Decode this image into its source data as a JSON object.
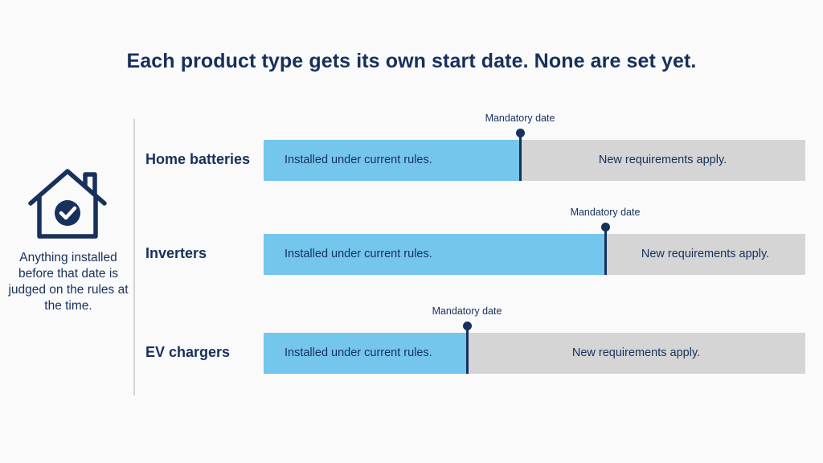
{
  "title": "Each product type gets its own start date. None are set yet.",
  "side_note": "Anything installed before that date is judged on the rules at the time.",
  "icons": {
    "house": "house-check-icon"
  },
  "colors": {
    "navy": "#17305c",
    "current_rules": "#74c6ed",
    "new_requirements": "#d5d5d5"
  },
  "rows": [
    {
      "label": "Home batteries",
      "current_text": "Installed under current rules.",
      "new_text": "New requirements apply.",
      "marker_label": "Mandatory date",
      "current_fraction": 0.473
    },
    {
      "label": "Inverters",
      "current_text": "Installed under current rules.",
      "new_text": "New requirements apply.",
      "marker_label": "Mandatory date",
      "current_fraction": 0.63
    },
    {
      "label": "EV chargers",
      "current_text": "Installed under current rules.",
      "new_text": "New requirements apply.",
      "marker_label": "Mandatory date",
      "current_fraction": 0.376
    }
  ]
}
